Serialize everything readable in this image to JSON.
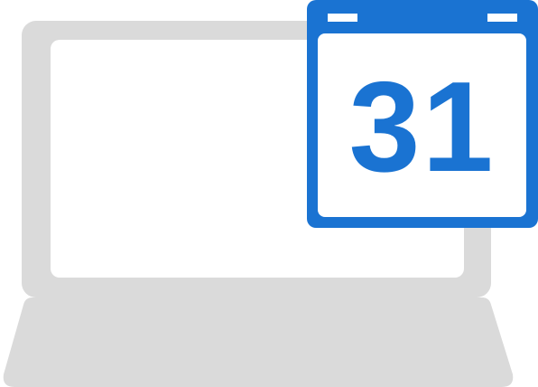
{
  "laptop": {
    "icon": "laptop-icon",
    "body_color": "#dadada",
    "screen_color": "#ffffff"
  },
  "calendar": {
    "icon": "calendar-icon",
    "day": "31",
    "accent_color": "#1a73d2"
  }
}
